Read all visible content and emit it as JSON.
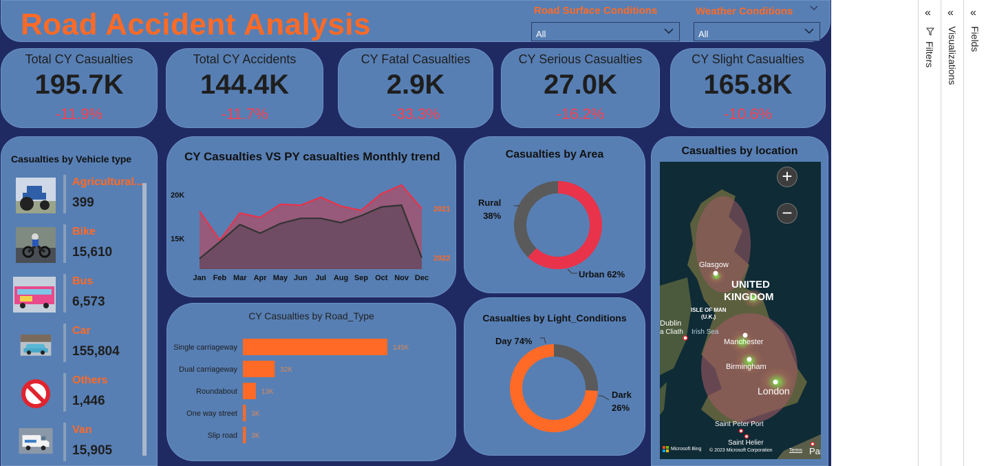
{
  "header": {
    "title": "Road Accident Analysis",
    "road_surface_label": "Road Surface Conditions",
    "road_surface_value": "All",
    "weather_label": "Weather Conditions",
    "weather_value": "All"
  },
  "kpis": [
    {
      "title": "Total CY Casualties",
      "value": "195.7K",
      "change": "-11.9%"
    },
    {
      "title": "Total CY Accidents",
      "value": "144.4K",
      "change": "-11.7%"
    },
    {
      "title": "CY Fatal Casualties",
      "value": "2.9K",
      "change": "-33.3%"
    },
    {
      "title": "CY Serious Casualties",
      "value": "27.0K",
      "change": "-16.2%"
    },
    {
      "title": "CY Slight Casualties",
      "value": "165.8K",
      "change": "-10.6%"
    }
  ],
  "vehicle": {
    "title": "Casualties by Vehicle type",
    "items": [
      {
        "name": "Agricultural...",
        "count": "399",
        "icon": "tractor-icon"
      },
      {
        "name": "Bike",
        "count": "15,610",
        "icon": "motorbike-icon"
      },
      {
        "name": "Bus",
        "count": "6,573",
        "icon": "bus-icon"
      },
      {
        "name": "Car",
        "count": "155,804",
        "icon": "car-icon"
      },
      {
        "name": "Others",
        "count": "1,446",
        "icon": "prohibited-icon"
      },
      {
        "name": "Van",
        "count": "15,905",
        "icon": "van-icon"
      }
    ]
  },
  "chart_data": [
    {
      "type": "area",
      "title": "CY Casualties VS PY casualties Monthly trend",
      "categories": [
        "Jan",
        "Feb",
        "Mar",
        "Apr",
        "May",
        "Jun",
        "Jul",
        "Aug",
        "Sep",
        "Oct",
        "Nov",
        "Dec"
      ],
      "series": [
        {
          "name": "2021",
          "values": [
            18100,
            14800,
            17900,
            17400,
            18900,
            18800,
            19700,
            18700,
            18200,
            20100,
            21100,
            18400
          ]
        },
        {
          "name": "2022",
          "values": [
            12700,
            14600,
            16600,
            15600,
            16700,
            17300,
            17300,
            16800,
            17600,
            18600,
            18800,
            12800
          ]
        }
      ],
      "yticks": [
        "15K",
        "20K"
      ],
      "ylim": [
        11500,
        22500
      ],
      "colors": {
        "2021": "#e8334a",
        "2022": "#333333"
      }
    },
    {
      "type": "bar",
      "title": "CY Casualties by Road_Type",
      "categories": [
        "Single carriageway",
        "Dual carriageway",
        "Roundabout",
        "One way street",
        "Slip road"
      ],
      "values": [
        145,
        32,
        13,
        3,
        3
      ],
      "labels": [
        "145K",
        "32K",
        "13K",
        "3K",
        "3K"
      ],
      "color": "#ff6a26"
    },
    {
      "type": "pie",
      "title": "Casualties by Area",
      "categories": [
        "Urban",
        "Rural"
      ],
      "values": [
        62,
        38
      ],
      "labels": [
        "Urban 62%",
        "Rural",
        "38%"
      ],
      "colors": [
        "#e8334a",
        "#5a5a5a"
      ]
    },
    {
      "type": "pie",
      "title": "Casualties by Light_Conditions",
      "categories": [
        "Day",
        "Dark"
      ],
      "values": [
        74,
        26
      ],
      "labels": [
        "Day 74%",
        "Dark",
        "26%"
      ],
      "colors": [
        "#ff6a26",
        "#5a5a5a"
      ]
    }
  ],
  "map": {
    "title": "Casualties by location",
    "labels": {
      "glasgow": "Glasgow",
      "uk1": "UNITED",
      "uk2": "KINGDOM",
      "isle1": "ISLE OF MAN",
      "isle2": "(U.K.)",
      "dublin1": "Dublin",
      "dublin2": "a Cliath",
      "irish_sea": "Irish Sea",
      "manchester": "Manchester",
      "birmingham": "Birmingham",
      "london": "London",
      "saint_peter": "Saint Peter Port",
      "saint_helier": "Saint Helier",
      "paris": "Pari",
      "bing": "Microsoft Bing",
      "copyright": "© 2023 Microsoft Corporation",
      "terms": "Terms"
    },
    "zoom_in": "+",
    "zoom_out": "−"
  },
  "panes": {
    "filters": "Filters",
    "visualizations": "Visualizations",
    "fields": "Fields"
  },
  "colors": {
    "background": "#1f2a63",
    "card": "#577fb4",
    "accent": "#ff6a26",
    "negative": "#ff3e4c"
  }
}
